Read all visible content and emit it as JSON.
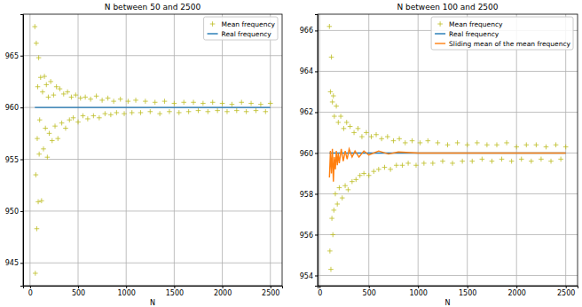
{
  "chart_data": [
    {
      "type": "scatter",
      "title": "N between 50 and 2500",
      "x_label": "N",
      "xlim": [
        -72.5,
        2622.5
      ],
      "ylim": [
        942.8,
        969.0
      ],
      "xticks": [
        0,
        500,
        1000,
        1500,
        2000,
        2500
      ],
      "yticks": [
        945,
        950,
        955,
        960,
        965
      ],
      "grid": true,
      "legend": "upper right",
      "series": [
        {
          "name": "Mean frequency",
          "type": "scatter",
          "marker": "plus",
          "color": "#bcbd22",
          "x": [
            50,
            55,
            60,
            65,
            70,
            75,
            80,
            85,
            90,
            95,
            100,
            110,
            120,
            130,
            140,
            150,
            160,
            170,
            180,
            190,
            200,
            215,
            230,
            245,
            260,
            275,
            290,
            310,
            330,
            350,
            370,
            390,
            410,
            430,
            450,
            475,
            500,
            525,
            550,
            575,
            600,
            630,
            660,
            690,
            720,
            750,
            780,
            810,
            840,
            870,
            900,
            940,
            980,
            1020,
            1060,
            1100,
            1150,
            1200,
            1250,
            1300,
            1350,
            1400,
            1450,
            1500,
            1550,
            1600,
            1650,
            1700,
            1750,
            1800,
            1850,
            1900,
            1950,
            2000,
            2050,
            2100,
            2150,
            2200,
            2250,
            2300,
            2350,
            2400,
            2450,
            2500
          ],
          "values": [
            967.8,
            944.0,
            953.5,
            966.2,
            948.3,
            957.0,
            962.0,
            950.9,
            964.8,
            955.5,
            958.8,
            962.9,
            951.0,
            961.5,
            956.0,
            963.0,
            958.0,
            962.2,
            955.2,
            961.0,
            957.5,
            962.5,
            956.8,
            961.2,
            958.2,
            962.0,
            957.0,
            961.8,
            958.5,
            961.3,
            958.0,
            961.5,
            958.8,
            961.0,
            959.0,
            961.2,
            958.6,
            960.9,
            959.2,
            961.0,
            958.9,
            960.8,
            959.2,
            961.1,
            959.0,
            960.7,
            959.4,
            960.9,
            959.3,
            960.6,
            959.5,
            960.8,
            959.4,
            960.6,
            959.5,
            960.7,
            959.5,
            960.6,
            959.6,
            960.5,
            959.4,
            960.6,
            959.6,
            960.4,
            959.5,
            960.5,
            959.6,
            960.5,
            959.7,
            960.4,
            959.6,
            960.5,
            959.7,
            960.4,
            959.6,
            960.3,
            959.7,
            960.5,
            959.6,
            960.4,
            959.7,
            960.3,
            959.6,
            960.4
          ]
        },
        {
          "name": "Real frequency",
          "type": "line",
          "line_style": "solid",
          "color": "#1f77b4",
          "x": [
            50,
            2500
          ],
          "values": [
            960,
            960
          ]
        }
      ]
    },
    {
      "type": "scatter",
      "title": "N between 100 and 2500",
      "x_label": "N",
      "xlim": [
        -20,
        2620
      ],
      "ylim": [
        953.5,
        966.8
      ],
      "xticks": [
        0,
        500,
        1000,
        1500,
        2000,
        2500
      ],
      "yticks": [
        954,
        956,
        958,
        960,
        962,
        964,
        966
      ],
      "grid": true,
      "legend": "upper right",
      "series": [
        {
          "name": "Mean frequency",
          "type": "scatter",
          "marker": "plus",
          "color": "#bcbd22",
          "x": [
            100,
            105,
            110,
            115,
            120,
            125,
            130,
            135,
            140,
            145,
            150,
            160,
            170,
            180,
            190,
            200,
            215,
            230,
            245,
            260,
            275,
            290,
            310,
            330,
            350,
            370,
            390,
            410,
            430,
            450,
            475,
            500,
            525,
            550,
            575,
            600,
            630,
            660,
            690,
            720,
            750,
            780,
            810,
            840,
            870,
            900,
            940,
            980,
            1020,
            1060,
            1100,
            1150,
            1200,
            1250,
            1300,
            1350,
            1400,
            1450,
            1500,
            1550,
            1600,
            1650,
            1700,
            1750,
            1800,
            1850,
            1900,
            1950,
            2000,
            2050,
            2100,
            2150,
            2200,
            2250,
            2300,
            2350,
            2400,
            2450,
            2500
          ],
          "values": [
            966.2,
            955.2,
            963.0,
            954.3,
            964.7,
            956.8,
            962.5,
            956.0,
            962.8,
            957.2,
            961.8,
            958.0,
            962.3,
            957.5,
            961.5,
            958.3,
            961.8,
            957.8,
            961.2,
            958.4,
            961.5,
            958.2,
            961.3,
            958.6,
            961.0,
            958.7,
            961.2,
            958.9,
            960.8,
            959.0,
            961.0,
            958.9,
            960.8,
            959.1,
            960.9,
            959.2,
            960.7,
            959.3,
            960.8,
            959.2,
            960.6,
            959.4,
            960.7,
            959.4,
            960.5,
            959.5,
            960.6,
            959.4,
            960.5,
            959.5,
            960.6,
            959.5,
            960.5,
            959.6,
            960.4,
            959.5,
            960.5,
            959.6,
            960.4,
            959.6,
            960.5,
            959.7,
            960.4,
            959.6,
            960.4,
            959.7,
            960.5,
            959.6,
            960.3,
            959.7,
            960.4,
            959.6,
            960.4,
            959.7,
            960.3,
            959.6,
            960.4,
            959.7,
            960.3
          ]
        },
        {
          "name": "Real frequency",
          "type": "line",
          "line_style": "solid",
          "color": "#1f77b4",
          "x": [
            100,
            2500
          ],
          "values": [
            960,
            960
          ]
        },
        {
          "name": "Sliding mean of the mean frequency",
          "type": "line",
          "line_style": "solid",
          "color": "#ff7f0e",
          "x": [
            100,
            110,
            120,
            130,
            140,
            150,
            160,
            170,
            180,
            190,
            200,
            220,
            240,
            260,
            280,
            300,
            330,
            360,
            400,
            450,
            500,
            600,
            700,
            800,
            1000,
            1200,
            1500,
            2000,
            2500
          ],
          "values": [
            958.8,
            960.1,
            959.0,
            960.2,
            958.6,
            959.8,
            959.2,
            960.1,
            959.4,
            960.0,
            959.5,
            960.2,
            959.6,
            960.1,
            959.7,
            960.2,
            959.8,
            960.1,
            959.8,
            960.1,
            959.9,
            960.1,
            959.95,
            960.05,
            960.0,
            960.0,
            960.0,
            960.0,
            960.0
          ]
        }
      ]
    }
  ]
}
